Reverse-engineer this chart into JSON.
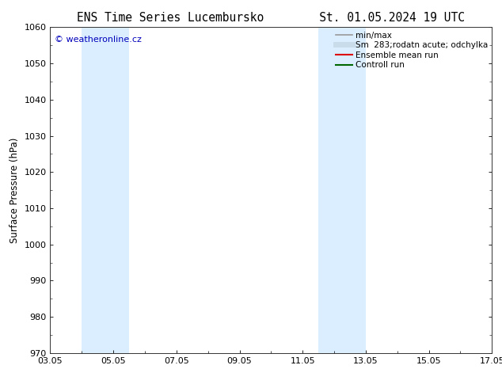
{
  "title_left": "ENS Time Series Lucembursko",
  "title_right": "St. 01.05.2024 19 UTC",
  "ylabel": "Surface Pressure (hPa)",
  "ylim": [
    970,
    1060
  ],
  "yticks": [
    970,
    980,
    990,
    1000,
    1010,
    1020,
    1030,
    1040,
    1050,
    1060
  ],
  "xtick_labels": [
    "03.05",
    "05.05",
    "07.05",
    "09.05",
    "11.05",
    "13.05",
    "15.05",
    "17.05"
  ],
  "xtick_days": [
    3,
    5,
    7,
    9,
    11,
    13,
    15,
    17
  ],
  "blue_bands": [
    {
      "day_start": 4.0,
      "day_end": 5.5
    },
    {
      "day_start": 11.5,
      "day_end": 13.0
    }
  ],
  "band_color": "#daeeff",
  "watermark_text": "© weatheronline.cz",
  "watermark_color": "#0000bb",
  "legend_entries": [
    {
      "label": "min/max",
      "color": "#999999",
      "lw": 1.2
    },
    {
      "label": "Sm  283;rodatn acute; odchylka",
      "color": "#c8dcea",
      "lw": 5
    },
    {
      "label": "Ensemble mean run",
      "color": "#dd0000",
      "lw": 1.5
    },
    {
      "label": "Controll run",
      "color": "#006600",
      "lw": 1.5
    }
  ],
  "bg_color": "#ffffff",
  "title_fontsize": 10.5,
  "ylabel_fontsize": 8.5,
  "tick_fontsize": 8,
  "watermark_fontsize": 8,
  "legend_fontsize": 7.5
}
